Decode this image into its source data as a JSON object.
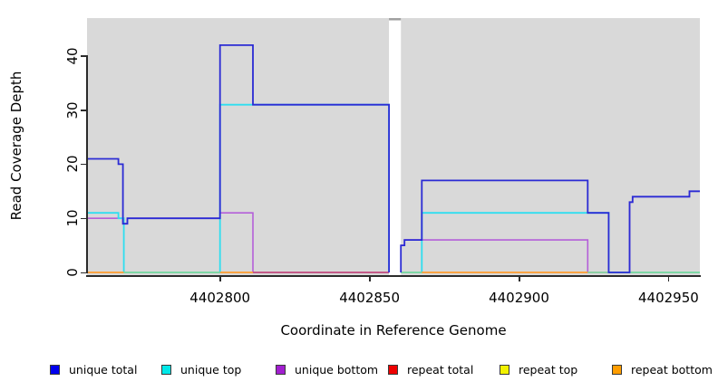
{
  "chart_data": {
    "type": "line",
    "subtype": "step-coverage",
    "title": "",
    "xlabel": "Coordinate in Reference Genome",
    "ylabel": "Read Coverage Depth",
    "xlim": [
      4402755.5,
      4402960.5
    ],
    "ylim": [
      -0.5,
      47.0
    ],
    "xticks": [
      4402800,
      4402850,
      4402900,
      4402950
    ],
    "yticks": [
      0,
      10,
      20,
      30,
      40
    ],
    "grid": false,
    "legend_position": "bottom",
    "plot_bg": "#d9d9d9",
    "gap": {
      "start": 4402856.5,
      "end": 4402860.5,
      "fill": "#ffffff",
      "top_sliver": "#a0a0a0"
    },
    "series": [
      {
        "name": "unique bottom",
        "color": "#b45fd9",
        "width": 1.6,
        "groups": [
          [
            [
              4402755.5,
              4402767.5,
              10
            ],
            [
              4402767.5,
              4402769,
              9
            ],
            [
              4402769,
              4402800,
              10
            ],
            [
              4402800,
              4402811,
              11
            ],
            [
              4402811,
              4402856.5,
              0
            ]
          ],
          [
            [
              4402860.5,
              4402861.7,
              5
            ],
            [
              4402861.7,
              4402923,
              6
            ],
            [
              4402923,
              4402937,
              0
            ],
            [
              4402937,
              4402938,
              13
            ],
            [
              4402938,
              4402957,
              14
            ],
            [
              4402957,
              4402960.5,
              15
            ]
          ]
        ]
      },
      {
        "name": "unique top",
        "color": "#2fdef0",
        "width": 1.8,
        "groups": [
          [
            [
              4402755.5,
              4402766,
              11
            ],
            [
              4402766,
              4402767.8,
              10
            ],
            [
              4402767.8,
              4402800,
              0
            ],
            [
              4402800,
              4402856.5,
              31
            ],
            [
              4402856.5,
              4402856.5,
              0
            ]
          ],
          [
            [
              4402860.5,
              4402867.5,
              0
            ],
            [
              4402867.5,
              4402930,
              11
            ],
            [
              4402930,
              4402960.5,
              0
            ]
          ]
        ]
      },
      {
        "name": "unique total",
        "color": "#2b2bd4",
        "width": 1.8,
        "groups": [
          [
            [
              4402755.5,
              4402766,
              21
            ],
            [
              4402766,
              4402767.5,
              20
            ],
            [
              4402767.5,
              4402769,
              9
            ],
            [
              4402769,
              4402800,
              10
            ],
            [
              4402800,
              4402811,
              42
            ],
            [
              4402811,
              4402856.5,
              31
            ],
            [
              4402856.5,
              4402856.5,
              0
            ]
          ],
          [
            [
              4402860.5,
              4402860.5,
              0
            ],
            [
              4402860.5,
              4402861.7,
              5
            ],
            [
              4402861.7,
              4402867.5,
              6
            ],
            [
              4402867.5,
              4402923,
              17
            ],
            [
              4402923,
              4402930,
              11
            ],
            [
              4402930,
              4402937,
              0
            ],
            [
              4402937,
              4402938,
              13
            ],
            [
              4402938,
              4402957,
              14
            ],
            [
              4402957,
              4402960.5,
              15
            ]
          ]
        ]
      }
    ],
    "baseline_segments": [
      {
        "from": 4402755.5,
        "to": 4402767.8,
        "color": "#ff9d2e"
      },
      {
        "from": 4402767.8,
        "to": 4402800,
        "color": "#85d69c"
      },
      {
        "from": 4402800,
        "to": 4402811,
        "color": "#ff9d2e"
      },
      {
        "from": 4402811,
        "to": 4402856.5,
        "color": "#c4517c"
      },
      {
        "from": 4402860.5,
        "to": 4402867.5,
        "color": "#85d69c"
      },
      {
        "from": 4402867.5,
        "to": 4402923,
        "color": "#ff9d2e"
      },
      {
        "from": 4402923,
        "to": 4402960.5,
        "color": "#85d69c"
      }
    ]
  },
  "legend": {
    "items": [
      {
        "label": "unique total",
        "color": "#0000ee"
      },
      {
        "label": "unique top",
        "color": "#00e8e8"
      },
      {
        "label": "unique bottom",
        "color": "#a21fd0"
      },
      {
        "label": "repeat total",
        "color": "#ee0000"
      },
      {
        "label": "repeat top",
        "color": "#f2f200"
      },
      {
        "label": "repeat bottom",
        "color": "#ff9d00"
      }
    ]
  }
}
